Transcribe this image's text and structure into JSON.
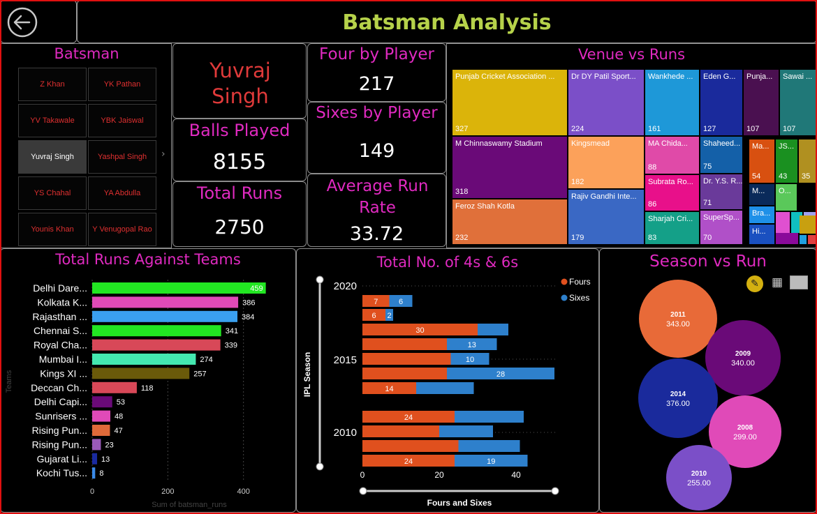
{
  "header": {
    "title": "Batsman Analysis",
    "back_icon": "back-arrow-icon"
  },
  "slicer": {
    "title": "Batsman",
    "items": [
      {
        "label": "Z Khan",
        "selected": false
      },
      {
        "label": "YK Pathan",
        "selected": false
      },
      {
        "label": "YV Takawale",
        "selected": false
      },
      {
        "label": "YBK Jaiswal",
        "selected": false
      },
      {
        "label": "Yuvraj Singh",
        "selected": true
      },
      {
        "label": "Yashpal Singh",
        "selected": false
      },
      {
        "label": "YS Chahal",
        "selected": false
      },
      {
        "label": "YA Abdulla",
        "selected": false
      },
      {
        "label": "Younis Khan",
        "selected": false
      },
      {
        "label": "Y Venugopal Rao",
        "selected": false
      }
    ],
    "scroll_icon": "chevron-right-icon"
  },
  "kpis": {
    "player_name": "Yuvraj Singh",
    "balls_label": "Balls Played",
    "balls_value": "8155",
    "runs_label": "Total Runs",
    "runs_value": "2750",
    "fours_label": "Four by Player",
    "fours_value": "217",
    "sixes_label": "Sixes by Player",
    "sixes_value": "149",
    "avg_label": "Average Run Rate",
    "avg_value": "33.72"
  },
  "venue": {
    "title": "Venue vs Runs",
    "tiles": [
      {
        "label": "Punjab Cricket Association ...",
        "value": "327",
        "color": "#dbb40a"
      },
      {
        "label": "M Chinnaswamy Stadium",
        "value": "318",
        "color": "#6a0a78"
      },
      {
        "label": "Feroz Shah Kotla",
        "value": "232",
        "color": "#e0703a"
      },
      {
        "label": "Dr DY Patil Sport...",
        "value": "224",
        "color": "#7b4fc8"
      },
      {
        "label": "Kingsmead",
        "value": "182",
        "color": "#fca15a"
      },
      {
        "label": "Rajiv Gandhi Inte...",
        "value": "179",
        "color": "#3a68c4"
      },
      {
        "label": "Wankhede ...",
        "value": "161",
        "color": "#1e98d8"
      },
      {
        "label": "MA Chida...",
        "value": "88",
        "color": "#e04aa8"
      },
      {
        "label": "Subrata Ro...",
        "value": "86",
        "color": "#e8108a"
      },
      {
        "label": "Sharjah Cri...",
        "value": "83",
        "color": "#14a088"
      },
      {
        "label": "Eden G...",
        "value": "127",
        "color": "#1a2a9c"
      },
      {
        "label": "Shaheed...",
        "value": "75",
        "color": "#1460a8"
      },
      {
        "label": "Dr. Y.S. R...",
        "value": "71",
        "color": "#6a3a9a"
      },
      {
        "label": "SuperSp...",
        "value": "70",
        "color": "#b050c8"
      },
      {
        "label": "Punja...",
        "value": "107",
        "color": "#4a1050"
      },
      {
        "label": "Sawai ...",
        "value": "107",
        "color": "#207878"
      },
      {
        "label": "Ma...",
        "value": "54",
        "color": "#d85010"
      },
      {
        "label": "JS...",
        "value": "43",
        "color": "#1a9020"
      },
      {
        "label": "",
        "value": "35",
        "color": "#b09020"
      },
      {
        "label": "M...",
        "value": "",
        "color": "#0a2a5a"
      },
      {
        "label": "Bra...",
        "value": "",
        "color": "#1e90e8"
      },
      {
        "label": "Hi...",
        "value": "",
        "color": "#1a50c0"
      },
      {
        "label": "O...",
        "value": "",
        "color": "#5ac85a"
      },
      {
        "label": "",
        "value": "",
        "color": "#e050d0"
      },
      {
        "label": "",
        "value": "",
        "color": "#10c0c0"
      },
      {
        "label": "",
        "value": "",
        "color": "#a0a0f0"
      },
      {
        "label": "",
        "value": "",
        "color": "#8a0a9a"
      },
      {
        "label": "",
        "value": "",
        "color": "#c8a010"
      },
      {
        "label": "",
        "value": "",
        "color": "#20a0e0"
      },
      {
        "label": "",
        "value": "",
        "color": "#e04040"
      }
    ]
  },
  "teams_chart": {
    "title": "Total Runs Against Teams",
    "chart_data": {
      "type": "bar",
      "orientation": "horizontal",
      "categories": [
        "Delhi Dare...",
        "Kolkata K...",
        "Rajasthan ...",
        "Chennai S...",
        "Royal Cha...",
        "Mumbai I...",
        "Kings XI ...",
        "Deccan Ch...",
        "Delhi Capi...",
        "Sunrisers ...",
        "Rising Pun...",
        "Rising Pun...",
        "Gujarat Li...",
        "Kochi Tus..."
      ],
      "values": [
        459,
        386,
        384,
        341,
        339,
        274,
        257,
        118,
        53,
        48,
        47,
        23,
        13,
        8
      ],
      "colors": [
        "#22e622",
        "#e04ab8",
        "#3aa0f0",
        "#22e622",
        "#d84858",
        "#44e8b0",
        "#6a5a0a",
        "#d84858",
        "#6a0a78",
        "#e04ab8",
        "#e06a3a",
        "#9a5ab8",
        "#1a2aa0",
        "#3a8ae8"
      ],
      "xlabel": "Sum of batsman_runs",
      "ylabel": "Teams",
      "xticks": [
        "0",
        "200",
        "400"
      ],
      "xlim": [
        0,
        480
      ]
    }
  },
  "fours_chart": {
    "title": "Total No. of 4s & 6s",
    "legend": [
      {
        "name": "Fours",
        "color": "#e0501e"
      },
      {
        "name": "Sixes",
        "color": "#2e80cc"
      }
    ],
    "chart_data": {
      "type": "bar",
      "orientation": "horizontal-stacked",
      "ylabel": "IPL Season",
      "xlabel": "Fours and Sixes",
      "xticks": [
        "0",
        "20",
        "40"
      ],
      "yticks": [
        "2020",
        "2015",
        "2010"
      ],
      "xlim": [
        0,
        50
      ],
      "series": [
        {
          "name": "Fours",
          "values": [
            7,
            6,
            30,
            22,
            23,
            22,
            14,
            24,
            20,
            25,
            24
          ],
          "labels": [
            "7",
            "6",
            "30",
            "",
            "",
            "",
            "14",
            "24",
            "",
            "",
            "24"
          ]
        },
        {
          "name": "Sixes",
          "values": [
            6,
            2,
            8,
            13,
            10,
            28,
            15,
            18,
            14,
            16,
            19
          ],
          "labels": [
            "6",
            "2",
            "",
            "13",
            "10",
            "28",
            "",
            "",
            "",
            "",
            "19"
          ]
        }
      ]
    }
  },
  "season_chart": {
    "title": "Season vs Run",
    "toolbar_icons": [
      "pencil-icon",
      "table-icon",
      "chart-icon"
    ],
    "chart_data": {
      "type": "bubble",
      "points": [
        {
          "season": "2011",
          "value": "343.00",
          "color": "#e86a38"
        },
        {
          "season": "2009",
          "value": "340.00",
          "color": "#6a0a78"
        },
        {
          "season": "2014",
          "value": "376.00",
          "color": "#1a2a9c"
        },
        {
          "season": "2008",
          "value": "299.00",
          "color": "#e04ab8"
        },
        {
          "season": "2010",
          "value": "255.00",
          "color": "#7b4fc8"
        }
      ]
    }
  }
}
